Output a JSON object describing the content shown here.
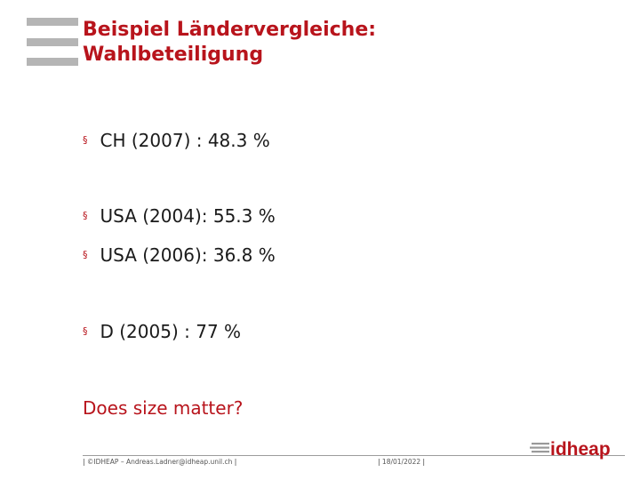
{
  "slide": {
    "title_line1": "Beispiel Ländervergleiche:",
    "title_line2": "Wahlbeteiligung",
    "bullets": [
      {
        "text": "CH (2007) : 48.3 %"
      },
      {
        "text": "USA (2004): 55.3 %"
      },
      {
        "text": "USA (2006): 36.8 %"
      },
      {
        "text": "D (2005) : 77 %"
      }
    ],
    "question": "Does size matter?",
    "bullet_symbol": "§"
  },
  "footer": {
    "left_separator": "|",
    "credit": "©IDHEAP – Andreas.Ladner@idheap.unil.ch",
    "right_separator": "|",
    "date_separator_left": "|",
    "date": "18/01/2022",
    "date_separator_right": "|"
  },
  "logo": {
    "text": "idheap",
    "icon": "idheap-logo-icon"
  },
  "colors": {
    "accent": "#b8141c",
    "bars": "#b5b5b5",
    "text": "#1a1a1a"
  }
}
